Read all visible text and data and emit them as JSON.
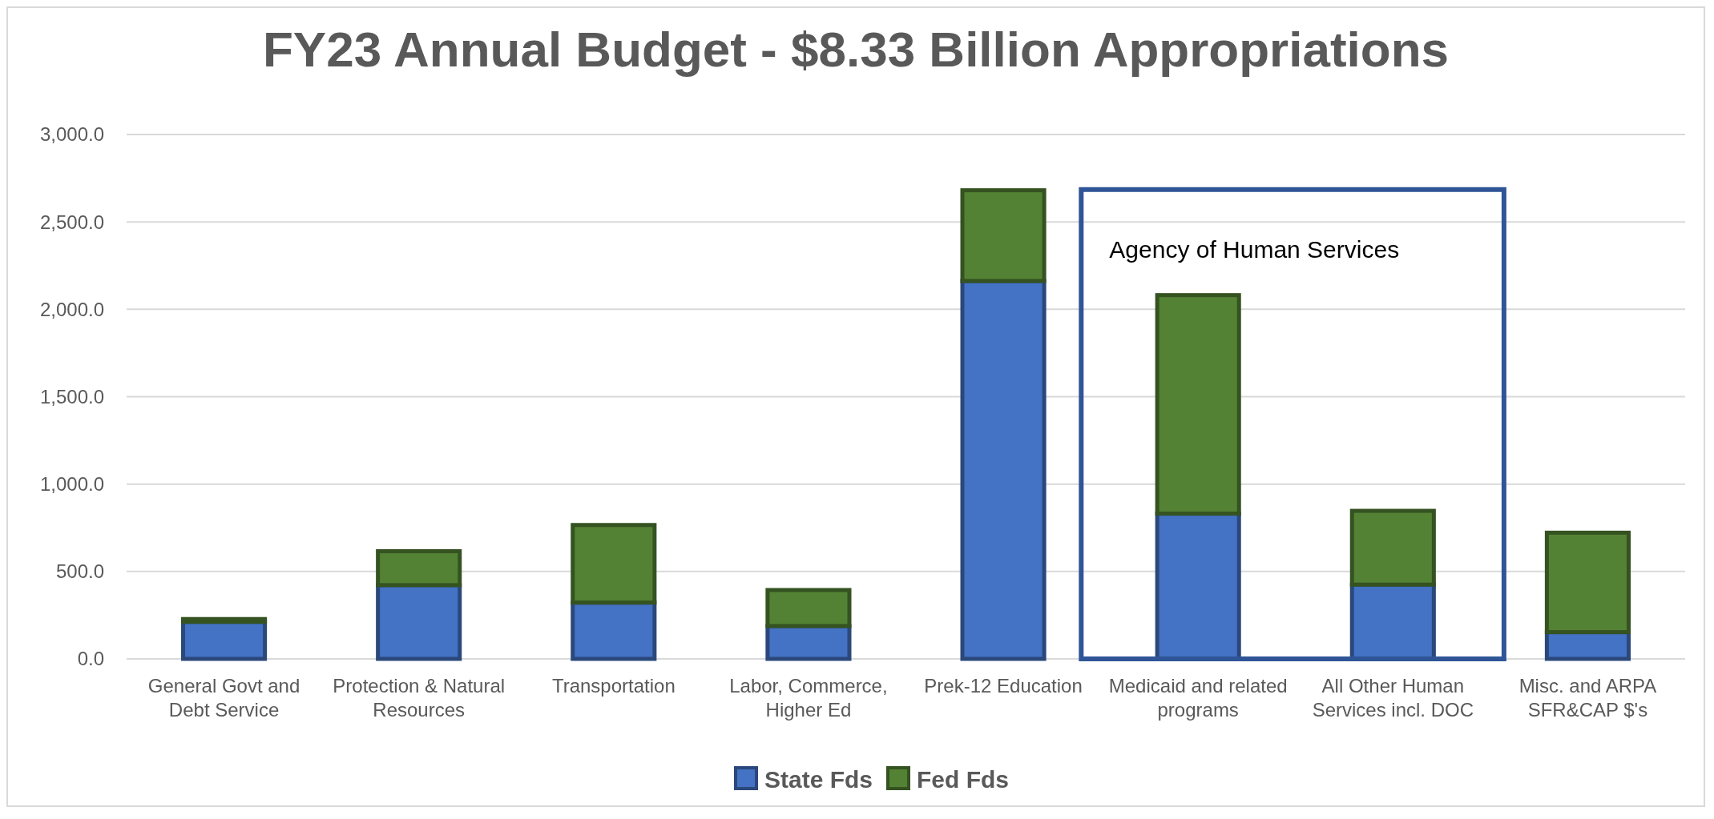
{
  "chart_data": {
    "type": "bar",
    "title": "FY23 Annual Budget - $8.33 Billion Appropriations",
    "categories": [
      "General Govt and Debt Service",
      "Protection & Natural Resources",
      "Transportation",
      "Labor, Commerce, Higher Ed",
      "Prek-12 Education",
      "Medicaid and related programs",
      "All Other Human Services incl. DOC",
      "Misc. and ARPA SFR&CAP $'s"
    ],
    "series": [
      {
        "name": "State Fds",
        "color": "#4472c4",
        "values": [
          212,
          422,
          322,
          188,
          2162,
          831,
          425,
          153
        ]
      },
      {
        "name": "Fed Fds",
        "color": "#548235",
        "values": [
          16,
          194,
          444,
          206,
          519,
          1250,
          422,
          569
        ]
      }
    ],
    "stacked": true,
    "ylim": [
      0,
      3000
    ],
    "yticks": [
      {
        "value": 0,
        "label": "0.0"
      },
      {
        "value": 500,
        "label": "500.0"
      },
      {
        "value": 1000,
        "label": "1,000.0"
      },
      {
        "value": 1500,
        "label": "1,500.0"
      },
      {
        "value": 2000,
        "label": "2,000.0"
      },
      {
        "value": 2500,
        "label": "2,500.0"
      },
      {
        "value": 3000,
        "label": "3,000.0"
      }
    ],
    "grid": "y",
    "legend": "bottom",
    "annotations": [
      "Agency of Human Services"
    ]
  }
}
